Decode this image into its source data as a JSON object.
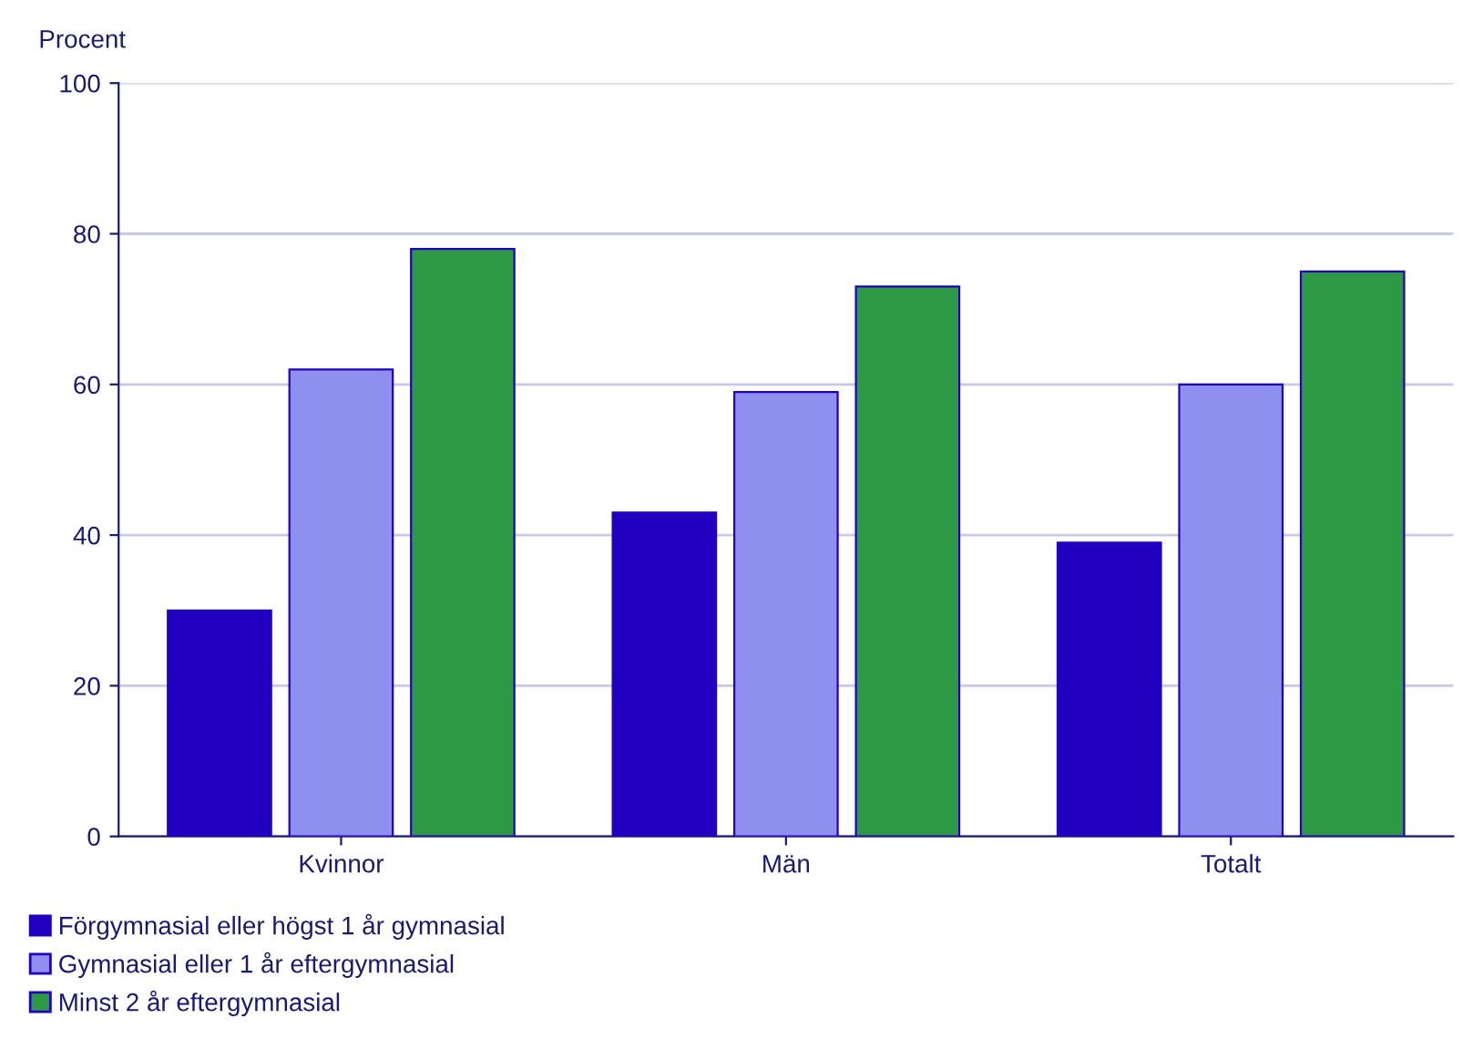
{
  "chart_data": {
    "type": "bar",
    "ylabel": "Procent",
    "categories": [
      "Kvinnor",
      "Män",
      "Totalt"
    ],
    "series": [
      {
        "name": "Förgymnasial eller högst 1 år gymnasial",
        "color": "#2200c0",
        "values": [
          30,
          43,
          39
        ]
      },
      {
        "name": "Gymnasial eller 1 år eftergymnasial",
        "color": "#8f8ff0",
        "values": [
          62,
          59,
          60
        ]
      },
      {
        "name": "Minst 2 år eftergymnasial",
        "color": "#2e9945",
        "values": [
          78,
          73,
          75
        ]
      }
    ],
    "ylim": [
      0,
      100
    ],
    "yticks": [
      0,
      20,
      40,
      60,
      80,
      100
    ],
    "grid": "y",
    "legend": "bottom left"
  }
}
